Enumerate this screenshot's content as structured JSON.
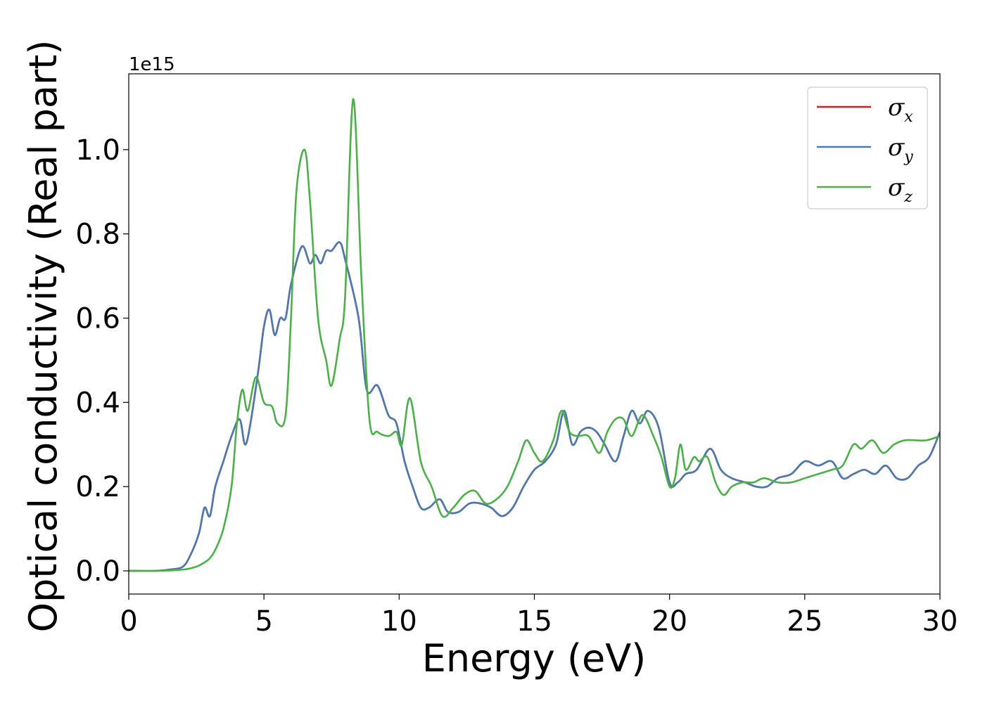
{
  "chart_data": {
    "type": "line",
    "title": "",
    "xlabel": "Energy (eV)",
    "ylabel": "Optical conductivity (Real part)",
    "y_offset_label": "1e15",
    "xlim": [
      0,
      30
    ],
    "ylim": [
      -0.055,
      1.18
    ],
    "x_ticks": [
      0,
      5,
      10,
      15,
      20,
      25,
      30
    ],
    "x_tick_labels": [
      "0",
      "5",
      "10",
      "15",
      "20",
      "25",
      "30"
    ],
    "y_ticks": [
      0.0,
      0.2,
      0.4,
      0.6,
      0.8,
      1.0
    ],
    "y_tick_labels": [
      "0.0",
      "0.2",
      "0.4",
      "0.6",
      "0.8",
      "1.0"
    ],
    "grid": false,
    "legend_position": "top-right",
    "series": [
      {
        "name": "σx",
        "legend_base": "σ",
        "legend_sub": "x",
        "color": "#e41a1c",
        "x": [
          0,
          1,
          1.5,
          2,
          2.3,
          2.6,
          2.8,
          3.0,
          3.2,
          3.5,
          3.8,
          4.1,
          4.3,
          4.5,
          4.8,
          5.0,
          5.2,
          5.4,
          5.6,
          5.8,
          6.0,
          6.4,
          6.7,
          6.9,
          7.1,
          7.3,
          7.5,
          7.8,
          8.0,
          8.5,
          8.8,
          9.2,
          9.6,
          9.9,
          10.2,
          10.5,
          10.8,
          11.1,
          11.5,
          11.8,
          12.2,
          12.6,
          13.0,
          13.4,
          13.8,
          14.2,
          14.6,
          15.0,
          15.4,
          15.8,
          16.1,
          16.4,
          16.7,
          17.0,
          17.3,
          17.6,
          18.0,
          18.3,
          18.6,
          18.9,
          19.2,
          19.6,
          20.0,
          20.3,
          20.6,
          21.0,
          21.5,
          21.9,
          22.3,
          22.8,
          23.2,
          23.6,
          24.0,
          24.5,
          25.0,
          25.5,
          26.0,
          26.4,
          26.8,
          27.2,
          27.6,
          28.0,
          28.4,
          28.8,
          29.2,
          29.6,
          30.0
        ],
        "values": [
          0.0,
          0.0,
          0.003,
          0.01,
          0.04,
          0.09,
          0.15,
          0.13,
          0.2,
          0.26,
          0.32,
          0.36,
          0.3,
          0.35,
          0.48,
          0.58,
          0.62,
          0.56,
          0.6,
          0.6,
          0.68,
          0.77,
          0.73,
          0.75,
          0.73,
          0.76,
          0.76,
          0.78,
          0.74,
          0.6,
          0.43,
          0.44,
          0.37,
          0.35,
          0.26,
          0.2,
          0.15,
          0.15,
          0.17,
          0.14,
          0.14,
          0.16,
          0.16,
          0.15,
          0.13,
          0.15,
          0.2,
          0.24,
          0.26,
          0.3,
          0.38,
          0.3,
          0.33,
          0.34,
          0.33,
          0.3,
          0.26,
          0.32,
          0.38,
          0.35,
          0.38,
          0.34,
          0.21,
          0.21,
          0.23,
          0.24,
          0.29,
          0.24,
          0.22,
          0.21,
          0.2,
          0.2,
          0.22,
          0.23,
          0.26,
          0.25,
          0.26,
          0.22,
          0.23,
          0.24,
          0.23,
          0.25,
          0.22,
          0.22,
          0.25,
          0.27,
          0.33
        ]
      },
      {
        "name": "σy",
        "legend_base": "σ",
        "legend_sub": "y",
        "color": "#4a7bb0",
        "x": [
          0,
          1,
          1.5,
          2,
          2.3,
          2.6,
          2.8,
          3.0,
          3.2,
          3.5,
          3.8,
          4.1,
          4.3,
          4.5,
          4.8,
          5.0,
          5.2,
          5.4,
          5.6,
          5.8,
          6.0,
          6.4,
          6.7,
          6.9,
          7.1,
          7.3,
          7.5,
          7.8,
          8.0,
          8.5,
          8.8,
          9.2,
          9.6,
          9.9,
          10.2,
          10.5,
          10.8,
          11.1,
          11.5,
          11.8,
          12.2,
          12.6,
          13.0,
          13.4,
          13.8,
          14.2,
          14.6,
          15.0,
          15.4,
          15.8,
          16.1,
          16.4,
          16.7,
          17.0,
          17.3,
          17.6,
          18.0,
          18.3,
          18.6,
          18.9,
          19.2,
          19.6,
          20.0,
          20.3,
          20.6,
          21.0,
          21.5,
          21.9,
          22.3,
          22.8,
          23.2,
          23.6,
          24.0,
          24.5,
          25.0,
          25.5,
          26.0,
          26.4,
          26.8,
          27.2,
          27.6,
          28.0,
          28.4,
          28.8,
          29.2,
          29.6,
          30.0
        ],
        "values": [
          0.0,
          0.0,
          0.003,
          0.01,
          0.04,
          0.09,
          0.15,
          0.13,
          0.2,
          0.26,
          0.32,
          0.36,
          0.3,
          0.35,
          0.48,
          0.58,
          0.62,
          0.56,
          0.6,
          0.6,
          0.68,
          0.77,
          0.73,
          0.75,
          0.73,
          0.76,
          0.76,
          0.78,
          0.74,
          0.6,
          0.43,
          0.44,
          0.37,
          0.35,
          0.26,
          0.2,
          0.15,
          0.15,
          0.17,
          0.14,
          0.14,
          0.16,
          0.16,
          0.15,
          0.13,
          0.15,
          0.2,
          0.24,
          0.26,
          0.3,
          0.38,
          0.3,
          0.33,
          0.34,
          0.33,
          0.3,
          0.26,
          0.32,
          0.38,
          0.35,
          0.38,
          0.34,
          0.21,
          0.21,
          0.23,
          0.24,
          0.29,
          0.24,
          0.22,
          0.21,
          0.2,
          0.2,
          0.22,
          0.23,
          0.26,
          0.25,
          0.26,
          0.22,
          0.23,
          0.24,
          0.23,
          0.25,
          0.22,
          0.22,
          0.25,
          0.27,
          0.33
        ]
      },
      {
        "name": "σz",
        "legend_base": "σ",
        "legend_sub": "z",
        "color": "#4daf4a",
        "x": [
          0,
          1,
          2,
          2.5,
          2.8,
          3.0,
          3.2,
          3.5,
          3.8,
          4.0,
          4.2,
          4.4,
          4.7,
          5.0,
          5.3,
          5.5,
          5.8,
          6.0,
          6.2,
          6.5,
          6.7,
          7.0,
          7.3,
          7.5,
          7.8,
          8.0,
          8.3,
          8.6,
          8.9,
          9.2,
          9.6,
          9.9,
          10.1,
          10.4,
          10.8,
          11.2,
          11.6,
          12.0,
          12.4,
          12.8,
          13.2,
          13.6,
          14.0,
          14.4,
          14.7,
          15.0,
          15.3,
          15.7,
          16.0,
          16.3,
          16.6,
          17.0,
          17.4,
          17.7,
          18.0,
          18.3,
          18.6,
          19.0,
          19.4,
          19.7,
          20.0,
          20.2,
          20.4,
          20.6,
          20.9,
          21.1,
          21.4,
          21.7,
          22.0,
          22.3,
          22.7,
          23.1,
          23.5,
          24.0,
          24.5,
          25.0,
          25.5,
          26.0,
          26.4,
          26.8,
          27.1,
          27.5,
          27.9,
          28.3,
          28.7,
          29.1,
          29.5,
          30.0
        ],
        "values": [
          0.0,
          0.0,
          0.003,
          0.01,
          0.02,
          0.03,
          0.05,
          0.1,
          0.2,
          0.35,
          0.43,
          0.38,
          0.46,
          0.4,
          0.39,
          0.35,
          0.37,
          0.6,
          0.9,
          1.0,
          0.88,
          0.6,
          0.5,
          0.44,
          0.55,
          0.65,
          1.12,
          0.7,
          0.36,
          0.33,
          0.32,
          0.33,
          0.3,
          0.41,
          0.26,
          0.2,
          0.13,
          0.15,
          0.18,
          0.19,
          0.16,
          0.17,
          0.2,
          0.26,
          0.31,
          0.28,
          0.26,
          0.31,
          0.38,
          0.33,
          0.32,
          0.32,
          0.28,
          0.33,
          0.36,
          0.36,
          0.32,
          0.37,
          0.32,
          0.27,
          0.2,
          0.22,
          0.3,
          0.24,
          0.27,
          0.26,
          0.27,
          0.21,
          0.18,
          0.2,
          0.21,
          0.21,
          0.22,
          0.21,
          0.21,
          0.22,
          0.23,
          0.24,
          0.25,
          0.3,
          0.29,
          0.31,
          0.28,
          0.3,
          0.31,
          0.31,
          0.31,
          0.32
        ]
      }
    ]
  }
}
